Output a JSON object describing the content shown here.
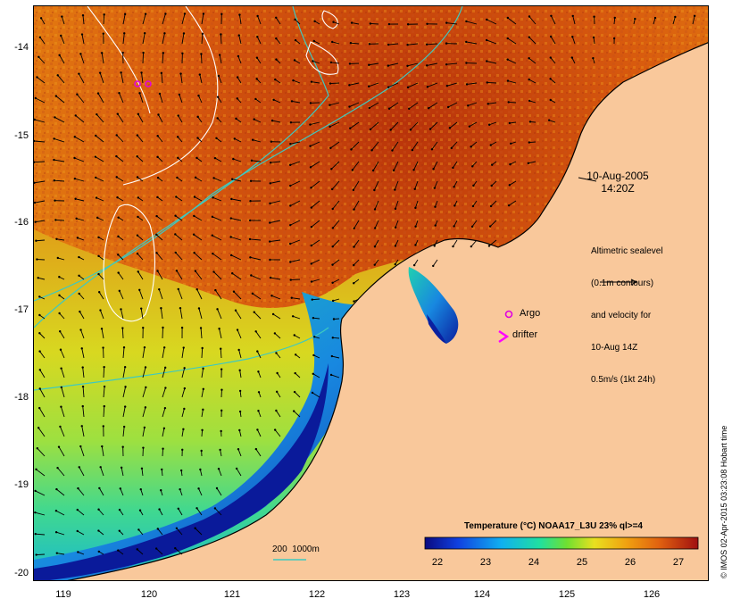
{
  "map": {
    "y_ticks": [
      "-14",
      "-15",
      "-16",
      "-17",
      "-18",
      "-19",
      "-20"
    ],
    "x_ticks": [
      "119",
      "120",
      "121",
      "122",
      "123",
      "124",
      "125",
      "126"
    ],
    "datetime": [
      "10-Aug-2005",
      "14:20Z"
    ],
    "altimetry_note": [
      "Altimetric sealevel",
      "(0.1m contours)",
      "and velocity for",
      "10-Aug 14Z",
      "0.5m/s (1kt 24h)"
    ],
    "legend_argo": "Argo",
    "legend_drifter": "drifter",
    "isobath_label": "200  1000m",
    "colorbar_title": "Temperature (°C) NOAA17_L3U 23% ql>=4",
    "colorbar_ticks": [
      "22",
      "23",
      "24",
      "25",
      "26",
      "27"
    ],
    "credit": "© IMOS 02-Apr-2015 03:23:08 Hobart time",
    "colors": {
      "land": "#f9c89b",
      "contour": "#ffffff",
      "isobath": "#3ec9c0",
      "argo": "#e000e0",
      "drifter": "#ff00ff"
    }
  }
}
